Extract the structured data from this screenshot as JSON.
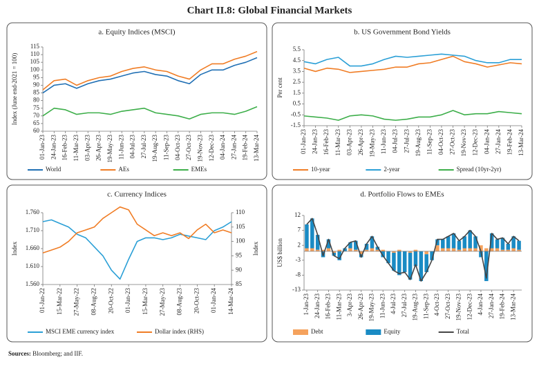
{
  "title": "Chart II.8: Global Financial Markets",
  "sources_label": "Sources:",
  "sources_text": "Bloomberg; and IIF.",
  "chart_data": [
    {
      "type": "line",
      "title": "a. Equity Indices (MSCI)",
      "ylabel": "Index (June end-2021 = 100)",
      "categories": [
        "01-Jan-23",
        "24-Jan-23",
        "16-Feb-23",
        "11-Mar-23",
        "03-Apr-23",
        "26-Apr-23",
        "19-May-23",
        "11-Jun-23",
        "04-Jul-23",
        "27-Jul-23",
        "19-Aug-23",
        "11-Sep-23",
        "04-Oct-23",
        "27-Oct-23",
        "19-Nov-23",
        "12-Dec-23",
        "04-Jan-24",
        "27-Jan-24",
        "19-Feb-24",
        "13-Mar-24"
      ],
      "ylim": [
        60,
        115
      ],
      "yticks": [
        60,
        65,
        70,
        75,
        80,
        85,
        90,
        95,
        100,
        105,
        110,
        115
      ],
      "series": [
        {
          "name": "World",
          "color": "#1f6fb4",
          "values": [
            85,
            90,
            91,
            88,
            91,
            93,
            94,
            96,
            98,
            99,
            97,
            96,
            93,
            91,
            97,
            100,
            100,
            103,
            105,
            108
          ]
        },
        {
          "name": "AEs",
          "color": "#f07c24",
          "values": [
            87,
            93,
            94,
            90,
            93,
            95,
            96,
            99,
            101,
            102,
            100,
            99,
            96,
            94,
            100,
            104,
            104,
            107,
            109,
            112
          ]
        },
        {
          "name": "EMEs",
          "color": "#3cae49",
          "values": [
            70,
            75,
            74,
            71,
            72,
            72,
            71,
            73,
            74,
            75,
            72,
            71,
            70,
            68,
            71,
            72,
            72,
            71,
            73,
            76
          ]
        }
      ]
    },
    {
      "type": "line",
      "title": "b. US  Government Bond Yields",
      "ylabel": "Per cent",
      "categories": [
        "01-Jan-23",
        "24-Jan-23",
        "16-Feb-23",
        "11-Mar-23",
        "03-Apr-23",
        "26-Apr-23",
        "19-May-23",
        "11-Jun-23",
        "04-Jul-23",
        "27-Jul-23",
        "19-Aug-23",
        "11-Sep-23",
        "04-Oct-23",
        "27-Oct-23",
        "19-Nov-23",
        "12-Dec-23",
        "04-Jan-24",
        "27-Jan-24",
        "19-Feb-24",
        "13-Mar-24"
      ],
      "ylim": [
        -1.5,
        5.5
      ],
      "yticks": [
        -1.5,
        -0.5,
        0.5,
        1.5,
        2.5,
        3.5,
        4.5,
        5.5
      ],
      "series": [
        {
          "name": "10-year",
          "color": "#f07c24",
          "values": [
            3.8,
            3.5,
            3.8,
            3.7,
            3.4,
            3.5,
            3.6,
            3.7,
            3.9,
            3.9,
            4.2,
            4.3,
            4.6,
            4.9,
            4.4,
            4.2,
            3.9,
            4.1,
            4.3,
            4.2
          ]
        },
        {
          "name": "2-year",
          "color": "#2a9fd6",
          "values": [
            4.4,
            4.2,
            4.6,
            4.8,
            4.0,
            4.0,
            4.2,
            4.6,
            4.9,
            4.8,
            4.9,
            5.0,
            5.1,
            5.0,
            4.9,
            4.5,
            4.3,
            4.3,
            4.6,
            4.6
          ]
        },
        {
          "name": "Spread (10yr-2yr)",
          "color": "#3cae49",
          "values": [
            -0.6,
            -0.7,
            -0.8,
            -1.0,
            -0.6,
            -0.5,
            -0.6,
            -0.9,
            -1.0,
            -0.9,
            -0.7,
            -0.7,
            -0.5,
            -0.1,
            -0.5,
            -0.4,
            -0.4,
            -0.2,
            -0.3,
            -0.4
          ]
        }
      ]
    },
    {
      "type": "line",
      "title": "c. Currency Indices",
      "ylabel": "Index",
      "y2label": "Index",
      "categories": [
        "01-Jan-22",
        null,
        "15-Mar-22",
        null,
        "27-May-22",
        null,
        "08-Aug-22",
        null,
        "20-Oct-22",
        null,
        "01-Jan-23",
        null,
        "15-Mar-23",
        null,
        "27-May-23",
        null,
        "08-Aug-23",
        null,
        "20-Oct-23",
        null,
        "01-Jan-24",
        null,
        "14-Mar-24"
      ],
      "ylim": [
        1.56,
        1.76
      ],
      "yticks": [
        {
          "value": 1.56,
          "label": "1.560"
        },
        {
          "value": 1.61,
          "label": "1.610"
        },
        {
          "value": 1.66,
          "label": "1.660"
        },
        {
          "value": 1.71,
          "label": "1.710"
        },
        {
          "value": 1.76,
          "label": "1.760"
        }
      ],
      "y2lim": [
        85,
        110
      ],
      "y2ticks": [
        85,
        90,
        95,
        100,
        105,
        110
      ],
      "series": [
        {
          "name": "MSCI EME currency index",
          "color": "#2a9fd6",
          "values": [
            1.735,
            1.74,
            1.73,
            1.72,
            1.7,
            1.69,
            1.665,
            1.64,
            1.6,
            1.575,
            1.63,
            1.68,
            1.69,
            1.69,
            1.685,
            1.69,
            1.7,
            1.695,
            1.69,
            1.685,
            1.71,
            1.72,
            1.735
          ]
        },
        {
          "name": "Dollar index (RHS)",
          "color": "#f07c24",
          "axis": "y2",
          "values": [
            96,
            97,
            98,
            100,
            103,
            104,
            105,
            108,
            110,
            112,
            111,
            106,
            104,
            102,
            103,
            102,
            103,
            101,
            104,
            106,
            103,
            104,
            103
          ]
        }
      ]
    },
    {
      "type": "bar",
      "stacked": true,
      "title": "d. Portfolio Flows to EMEs",
      "ylabel": "US$ billion",
      "categories": [
        "1-Jan-23",
        null,
        "24-Jan-23",
        null,
        "16-Feb-23",
        null,
        "11-Mar-23",
        null,
        "3-Apr-23",
        null,
        "26-Apr-23",
        null,
        "19-May-23",
        null,
        "11-Jun-23",
        null,
        "4-Jul-23",
        null,
        "27-Jul-23",
        null,
        "19-Aug-23",
        null,
        "11-Sep-23",
        null,
        "4-Oct-23",
        null,
        "27-Oct-23",
        null,
        "19-Nov-23",
        null,
        "12-Dec-23",
        null,
        "4-Jan-24",
        null,
        "27-Jan-24",
        null,
        "19-Feb-24",
        null,
        "13-Mar-24",
        null
      ],
      "ylim": [
        -13,
        12
      ],
      "yticks": [
        -13,
        -8,
        -3,
        2,
        7,
        12
      ],
      "series": [
        {
          "name": "Debt",
          "color": "#f5a25d",
          "values": [
            1,
            1,
            0.5,
            0.5,
            1,
            -0.5,
            0.5,
            0,
            1,
            0.5,
            -1,
            0.5,
            1,
            0.5,
            0.5,
            0,
            -0.5,
            0.5,
            0,
            -0.5,
            0.5,
            0,
            -1,
            0,
            2,
            1,
            1,
            1,
            0.5,
            1,
            1,
            1,
            2,
            1,
            1,
            1,
            0.5,
            0.5,
            1,
            0.5
          ]
        },
        {
          "name": "Equity",
          "color": "#1a8bc4",
          "values": [
            8,
            10,
            5,
            -2,
            3,
            -1,
            -3,
            1,
            2,
            3,
            -1,
            2,
            4,
            1,
            -2,
            -4,
            -6,
            -8,
            -7,
            -9,
            -5,
            -10,
            -6,
            -3,
            2,
            3,
            4,
            5,
            3,
            4,
            6,
            4,
            -2,
            -10,
            5,
            3,
            4,
            2,
            4,
            3
          ]
        },
        {
          "name": "Total",
          "color": "#444444",
          "type": "line",
          "values": [
            9,
            11,
            5.5,
            -1.5,
            4,
            -1.5,
            -2.5,
            1,
            3,
            3.5,
            -2,
            2.5,
            5,
            1.5,
            -1.5,
            -4,
            -6.5,
            -7.5,
            -7,
            -9.5,
            -4.5,
            -10,
            -7,
            -3,
            4,
            4,
            5,
            6,
            3.5,
            5,
            7,
            5,
            0,
            -9,
            6,
            4,
            4.5,
            2.5,
            5,
            3.5
          ]
        }
      ]
    }
  ]
}
